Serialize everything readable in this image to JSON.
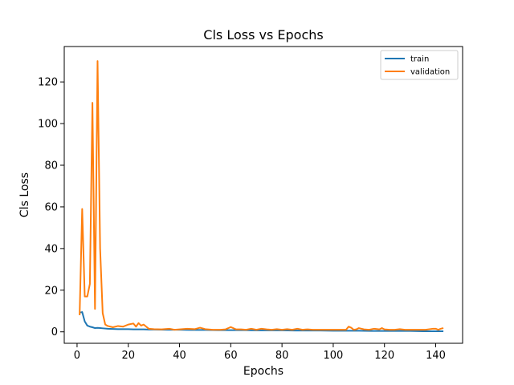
{
  "chart_data": {
    "type": "line",
    "title": "Cls Loss vs Epochs",
    "xlabel": "Epochs",
    "ylabel": "Cls Loss",
    "xlim": [
      -5,
      150.5
    ],
    "ylim": [
      -5.5,
      137
    ],
    "xticks": [
      0,
      20,
      40,
      60,
      80,
      100,
      120,
      140
    ],
    "yticks": [
      0,
      20,
      40,
      60,
      80,
      100,
      120
    ],
    "grid": false,
    "legend_position": "upper-right",
    "series": [
      {
        "name": "train",
        "color": "#1f77b4",
        "x": [
          1,
          2,
          3,
          4,
          5,
          6,
          7,
          8,
          9,
          10,
          12,
          14,
          16,
          18,
          20,
          22,
          24,
          26,
          28,
          30,
          35,
          40,
          45,
          50,
          55,
          60,
          65,
          70,
          75,
          80,
          85,
          90,
          95,
          100,
          105,
          110,
          115,
          120,
          125,
          130,
          135,
          140,
          143
        ],
        "y": [
          9.2,
          9.5,
          5,
          3,
          2.5,
          2.2,
          1.8,
          1.9,
          1.8,
          1.7,
          1.5,
          1.4,
          1.3,
          1.3,
          1.3,
          1.2,
          1.2,
          1.2,
          1.1,
          1.1,
          1.0,
          1.0,
          0.9,
          0.9,
          0.8,
          0.8,
          0.8,
          0.7,
          0.7,
          0.7,
          0.6,
          0.6,
          0.6,
          0.5,
          0.5,
          0.5,
          0.4,
          0.4,
          0.4,
          0.4,
          0.3,
          0.3,
          0.3
        ]
      },
      {
        "name": "validation",
        "color": "#ff7f0e",
        "x": [
          1,
          2,
          3,
          4,
          5,
          6,
          7,
          8,
          9,
          10,
          11,
          12,
          14,
          16,
          18,
          20,
          22,
          23,
          24,
          25,
          26,
          27,
          28,
          30,
          33,
          36,
          38,
          40,
          43,
          46,
          48,
          50,
          53,
          56,
          58,
          60,
          62,
          64,
          66,
          68,
          70,
          72,
          74,
          76,
          78,
          80,
          82,
          84,
          86,
          88,
          90,
          92,
          95,
          98,
          100,
          103,
          105,
          106,
          107,
          108,
          109,
          110,
          112,
          114,
          116,
          118,
          119,
          120,
          122,
          124,
          126,
          128,
          130,
          133,
          136,
          139,
          140,
          141,
          142,
          143
        ],
        "y": [
          8,
          59,
          17,
          17,
          23,
          110,
          11,
          130,
          40,
          9,
          3.5,
          2.8,
          2.2,
          2.8,
          2.5,
          3.5,
          4,
          2.5,
          4.2,
          3,
          3.5,
          2.5,
          1.5,
          1.3,
          1.2,
          1.5,
          1.0,
          1.2,
          1.5,
          1.3,
          2,
          1.3,
          1.0,
          1.0,
          1.2,
          2.3,
          1.2,
          1.2,
          1.0,
          1.5,
          1.0,
          1.5,
          1.2,
          1.0,
          1.3,
          1.0,
          1.3,
          1.0,
          1.5,
          1.0,
          1.2,
          1.0,
          1.0,
          1.0,
          1.0,
          1.0,
          1.0,
          2.5,
          2,
          1.0,
          1.2,
          1.8,
          1.2,
          1.0,
          1.5,
          1.2,
          1.8,
          1.2,
          1.0,
          1.0,
          1.3,
          1.0,
          1.0,
          1.0,
          1.0,
          1.5,
          1.5,
          1.0,
          1.5,
          1.8
        ]
      }
    ]
  }
}
